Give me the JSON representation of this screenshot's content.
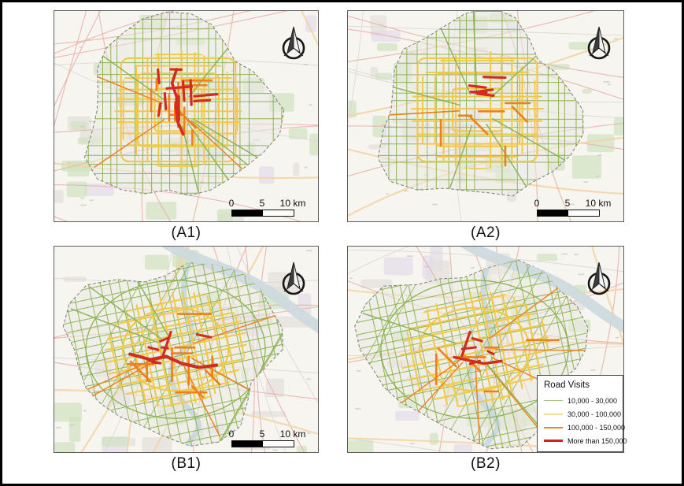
{
  "figure": {
    "background": "#ffffff",
    "outer_border_color": "#000000",
    "panel_border_color": "#5c5c5c"
  },
  "panels": [
    {
      "id": "a1",
      "label": "(A1)",
      "city": "A",
      "intensity": "high",
      "has_scalebar": true
    },
    {
      "id": "a2",
      "label": "(A2)",
      "city": "A",
      "intensity": "low",
      "has_scalebar": true
    },
    {
      "id": "b1",
      "label": "(B1)",
      "city": "B",
      "intensity": "high",
      "has_scalebar": true
    },
    {
      "id": "b2",
      "label": "(B2)",
      "city": "B",
      "intensity": "low",
      "has_scalebar": false
    }
  ],
  "scalebar": {
    "tick_start": "0",
    "tick_mid": "5",
    "tick_end": "10 km"
  },
  "legend": {
    "title": "Road Visits",
    "items": [
      {
        "label": "10,000 - 30,000",
        "color": "#9dc183",
        "line_weight": 1.2
      },
      {
        "label": "30,000 - 100,000",
        "color": "#f2dd92",
        "line_weight": 2.0
      },
      {
        "label": "100,000 - 150,000",
        "color": "#f08223",
        "line_weight": 2.8
      },
      {
        "label": "More than 150,000",
        "color": "#d7201d",
        "line_weight": 3.6
      }
    ]
  },
  "map_colors": {
    "bg": "#f7f5f0",
    "road_green": "#8ab352",
    "road_yellow": "#efc94c",
    "road_orange": "#ee7f1d",
    "road_red": "#d22b20",
    "bgroad_pink": "#eab0aa",
    "bgroad_gray": "#d8d4ce",
    "bgroad_tan": "#f2d3a4",
    "water": "#ccd9de",
    "patch_green": "#cfe3bd",
    "patch_gray": "#e2dfda",
    "patch_purple": "#e2dcea",
    "blob_fill": "#ebe8e1",
    "blob_stroke": "#7d7d7d"
  }
}
